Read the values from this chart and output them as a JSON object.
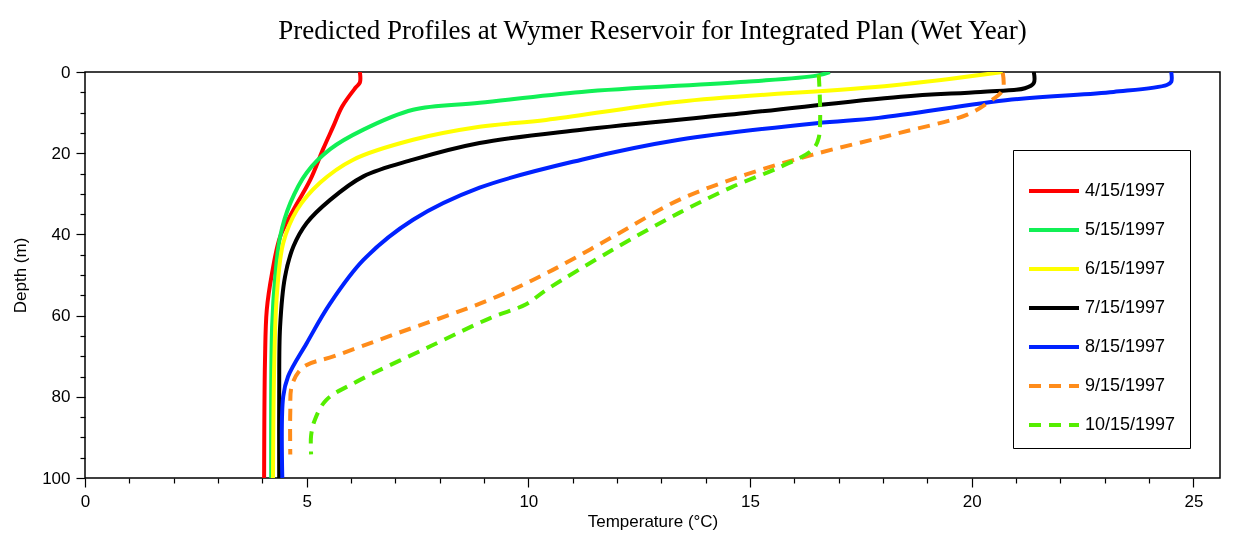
{
  "chart_data": {
    "type": "line",
    "title": "Predicted Profiles at Wymer Reservoir for Integrated Plan (Wet Year)",
    "xlabel": "Temperature (°C)",
    "ylabel": "Depth (m)",
    "xlim": [
      0,
      25.6
    ],
    "ylim": [
      100,
      0
    ],
    "xticks": [
      0,
      {
        "value": 1,
        "label": null
      },
      {
        "value": 2,
        "label": null
      },
      {
        "value": 3,
        "label": null
      },
      {
        "value": 4,
        "label": null
      },
      5,
      {
        "value": 6,
        "label": null
      },
      {
        "value": 7,
        "label": null
      },
      {
        "value": 8,
        "label": null
      },
      {
        "value": 9,
        "label": null
      },
      10,
      {
        "value": 11,
        "label": null
      },
      {
        "value": 12,
        "label": null
      },
      {
        "value": 13,
        "label": null
      },
      {
        "value": 14,
        "label": null
      },
      15,
      {
        "value": 16,
        "label": null
      },
      {
        "value": 17,
        "label": null
      },
      {
        "value": 18,
        "label": null
      },
      {
        "value": 19,
        "label": null
      },
      20,
      {
        "value": 21,
        "label": null
      },
      {
        "value": 22,
        "label": null
      },
      {
        "value": 23,
        "label": null
      },
      {
        "value": 24,
        "label": null
      },
      25
    ],
    "yticks": [
      0,
      {
        "value": 5,
        "label": null
      },
      {
        "value": 10,
        "label": null
      },
      {
        "value": 15,
        "label": null
      },
      20,
      {
        "value": 25,
        "label": null
      },
      {
        "value": 30,
        "label": null
      },
      {
        "value": 35,
        "label": null
      },
      40,
      {
        "value": 45,
        "label": null
      },
      {
        "value": 50,
        "label": null
      },
      {
        "value": 55,
        "label": null
      },
      60,
      {
        "value": 65,
        "label": null
      },
      {
        "value": 70,
        "label": null
      },
      {
        "value": 75,
        "label": null
      },
      80,
      {
        "value": 85,
        "label": null
      },
      {
        "value": 90,
        "label": null
      },
      {
        "value": 95,
        "label": null
      },
      100
    ],
    "grid": false,
    "legend": "bottom right",
    "series": [
      {
        "name": "4/15/1997",
        "color": "#ff0000",
        "line_style": "solid",
        "x": [
          6.2,
          6.2,
          6.1,
          5.8,
          5.6,
          5.37,
          5.08,
          4.7,
          4.4,
          4.22,
          4.1,
          4.06,
          4.04
        ],
        "values": [
          0,
          2.6,
          3.9,
          8.5,
          13.4,
          19,
          26.6,
          34,
          40.6,
          49.5,
          58.6,
          71,
          100
        ]
      },
      {
        "name": "5/15/1997",
        "color": "#11f055",
        "line_style": "solid",
        "x": [
          16.8,
          16.5,
          14.9,
          11.2,
          8.9,
          7.4,
          6.28,
          5.53,
          5.0,
          4.63,
          4.4,
          4.29,
          4.22,
          4.2
        ],
        "values": [
          0,
          0.9,
          2.4,
          4.9,
          7.6,
          9.3,
          14.2,
          19,
          24.8,
          32.3,
          40.6,
          50.5,
          62.8,
          100
        ]
      },
      {
        "name": "6/15/1997",
        "color": "#ffff00",
        "line_style": "solid",
        "x": [
          20.7,
          18.2,
          13.4,
          10.4,
          8.9,
          7.4,
          6.05,
          5.3,
          4.78,
          4.47,
          4.33,
          4.27,
          4.24
        ],
        "values": [
          0,
          3.3,
          7.3,
          11.8,
          13.5,
          16.7,
          21.6,
          27.3,
          34,
          42.2,
          54.5,
          71,
          100
        ]
      },
      {
        "name": "7/15/1997",
        "color": "#000000",
        "line_style": "solid",
        "x": [
          21.4,
          21.4,
          21.2,
          20.2,
          18.4,
          14.9,
          11.2,
          8.9,
          7.4,
          6.28,
          5.53,
          5.0,
          4.7,
          4.51,
          4.4,
          4.38,
          4.38
        ],
        "values": [
          0,
          2.7,
          4,
          4.9,
          6.1,
          10.1,
          14.2,
          17.5,
          21.6,
          25.7,
          31.5,
          37.2,
          43,
          50.5,
          62.8,
          79,
          100
        ]
      },
      {
        "name": "8/15/1997",
        "color": "#0022ff",
        "line_style": "solid",
        "x": [
          24.5,
          24.5,
          24.4,
          23.2,
          20.9,
          17.9,
          16.5,
          13.4,
          11.2,
          8.9,
          7.4,
          6.28,
          5.53,
          5.0,
          4.58,
          4.47,
          4.45
        ],
        "values": [
          0,
          2.4,
          3.2,
          4.9,
          6.8,
          11.3,
          12.6,
          16.7,
          21.6,
          28.5,
          36.4,
          46.3,
          57,
          66.8,
          75,
          80,
          100
        ]
      },
      {
        "name": "9/15/1997",
        "color": "#ff8c1a",
        "line_style": "dashed",
        "x": [
          20.7,
          20.7,
          20.4,
          19.9,
          18.3,
          16.4,
          14.9,
          13.4,
          11.9,
          10.4,
          9.1,
          6.93,
          5.62,
          4.92,
          4.67,
          4.63,
          4.63
        ],
        "values": [
          0.2,
          4.4,
          7.3,
          10.5,
          15.2,
          20.4,
          25.3,
          31.5,
          40.6,
          49.6,
          56.2,
          64.8,
          70,
          72.7,
          77.1,
          83.8,
          94.2
        ]
      },
      {
        "name": "10/15/1997",
        "color": "#55ee00",
        "line_style": "dashed",
        "x": [
          16.55,
          16.55,
          16.4,
          15.7,
          14.6,
          13.4,
          11.9,
          10.4,
          9.95,
          9.14,
          7.8,
          6.14,
          5.44,
          5.19,
          5.1,
          5.1
        ],
        "values": [
          0.7,
          16.2,
          19.2,
          23.3,
          28.3,
          34.7,
          43.8,
          53.7,
          57.2,
          60.6,
          67.5,
          76.2,
          80.8,
          85.5,
          89.5,
          94.2
        ]
      }
    ]
  }
}
